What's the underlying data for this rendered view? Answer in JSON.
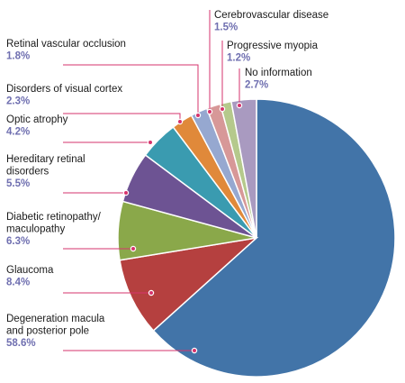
{
  "chart_data": {
    "type": "pie",
    "title": "",
    "unit": "%",
    "slices": [
      {
        "name": "Degeneration macula and posterior pole",
        "lines": [
          "Degeneration macula",
          "and posterior pole"
        ],
        "value": 58.6,
        "label": "58.6%",
        "color": "#4274a8"
      },
      {
        "name": "Glaucoma",
        "lines": [
          "Glaucoma"
        ],
        "value": 8.4,
        "label": "8.4%",
        "color": "#b5403f"
      },
      {
        "name": "Diabetic retinopathy/ maculopathy",
        "lines": [
          "Diabetic retinopathy/",
          "maculopathy"
        ],
        "value": 6.3,
        "label": "6.3%",
        "color": "#8aa84a"
      },
      {
        "name": "Hereditary retinal disorders",
        "lines": [
          "Hereditary retinal",
          "disorders"
        ],
        "value": 5.5,
        "label": "5.5%",
        "color": "#6d5393"
      },
      {
        "name": "Optic atrophy",
        "lines": [
          "Optic atrophy"
        ],
        "value": 4.2,
        "label": "4.2%",
        "color": "#3a9bb0"
      },
      {
        "name": "Disorders of visual cortex",
        "lines": [
          "Disorders of visual cortex"
        ],
        "value": 2.3,
        "label": "2.3%",
        "color": "#e0893a"
      },
      {
        "name": "Retinal vascular occlusion",
        "lines": [
          "Retinal vascular occlusion"
        ],
        "value": 1.8,
        "label": "1.8%",
        "color": "#96a8d0"
      },
      {
        "name": "Cerebrovascular disease",
        "lines": [
          "Cerebrovascular disease"
        ],
        "value": 1.5,
        "label": "1.5%",
        "color": "#d79898"
      },
      {
        "name": "Progressive myopia",
        "lines": [
          "Progressive myopia"
        ],
        "value": 1.2,
        "label": "1.2%",
        "color": "#b5c98c"
      },
      {
        "name": "No information",
        "lines": [
          "No information"
        ],
        "value": 2.7,
        "label": "2.7%",
        "color": "#a99ac0"
      }
    ]
  }
}
